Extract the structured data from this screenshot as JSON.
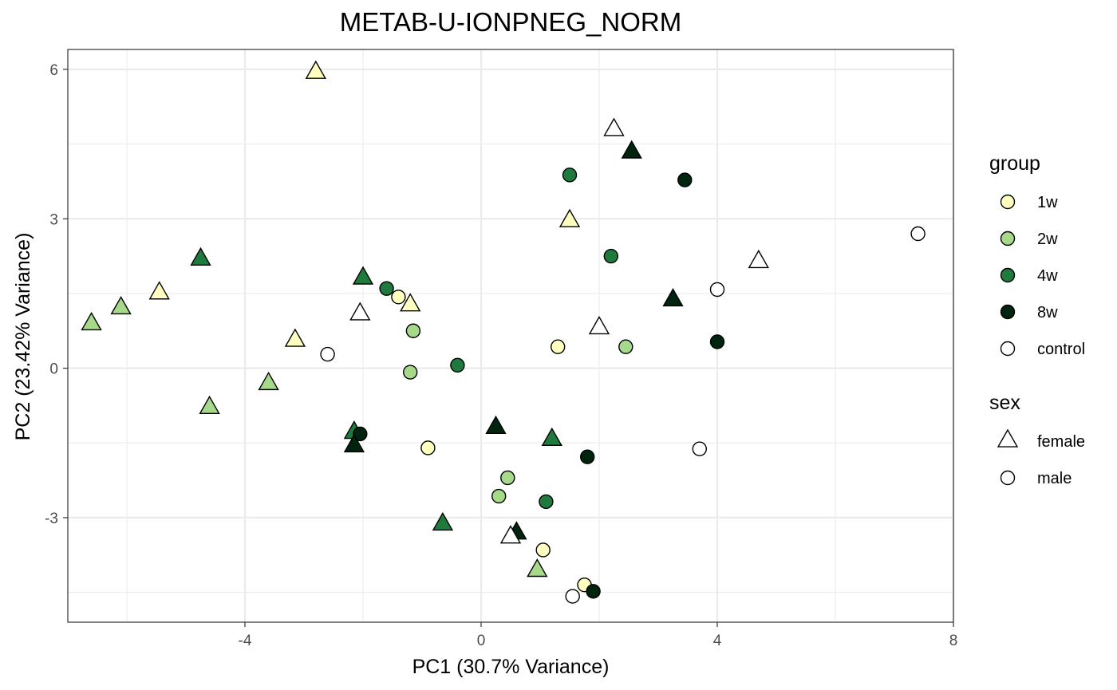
{
  "chart_data": {
    "type": "scatter",
    "title": "METAB-U-IONPNEG_NORM",
    "xlabel": "PC1 (30.7% Variance)",
    "ylabel": "PC2 (23.42% Variance)",
    "xlim": [
      -7.0,
      8.0
    ],
    "ylim": [
      -5.1,
      6.4
    ],
    "x_ticks": [
      -4,
      0,
      4,
      8
    ],
    "x_tick_labels": [
      "-4",
      "0",
      "4",
      "8"
    ],
    "y_ticks": [
      -3,
      0,
      3,
      6
    ],
    "y_tick_labels": [
      "-3",
      "0",
      "3",
      "6"
    ],
    "grid": true,
    "legend_position": "right",
    "colors": {
      "1w": "#ffffbf",
      "2w": "#a6d98a",
      "4w": "#1f7a3e",
      "8w": "#00240d",
      "control": "#ffffff"
    },
    "legends": [
      {
        "title": "group",
        "kind": "fill",
        "entries": [
          {
            "label": "1w",
            "group": "1w",
            "shape": "circle"
          },
          {
            "label": "2w",
            "group": "2w",
            "shape": "circle"
          },
          {
            "label": "4w",
            "group": "4w",
            "shape": "circle"
          },
          {
            "label": "8w",
            "group": "8w",
            "shape": "circle"
          },
          {
            "label": "control",
            "group": "control",
            "shape": "circle"
          }
        ]
      },
      {
        "title": "sex",
        "kind": "shape",
        "entries": [
          {
            "label": "female",
            "group": "control",
            "shape": "triangle"
          },
          {
            "label": "male",
            "group": "control",
            "shape": "circle"
          }
        ]
      }
    ],
    "points": [
      {
        "x": -2.8,
        "y": 5.95,
        "group": "1w",
        "sex": "female"
      },
      {
        "x": -5.45,
        "y": 1.52,
        "group": "1w",
        "sex": "female"
      },
      {
        "x": -3.15,
        "y": 0.57,
        "group": "1w",
        "sex": "female"
      },
      {
        "x": -1.2,
        "y": 1.28,
        "group": "1w",
        "sex": "female"
      },
      {
        "x": 1.5,
        "y": 2.97,
        "group": "1w",
        "sex": "female"
      },
      {
        "x": -1.4,
        "y": 1.43,
        "group": "1w",
        "sex": "male"
      },
      {
        "x": 1.3,
        "y": 0.43,
        "group": "1w",
        "sex": "male"
      },
      {
        "x": -0.9,
        "y": -1.6,
        "group": "1w",
        "sex": "male"
      },
      {
        "x": 1.05,
        "y": -3.65,
        "group": "1w",
        "sex": "male"
      },
      {
        "x": 1.75,
        "y": -4.35,
        "group": "1w",
        "sex": "male"
      },
      {
        "x": -6.6,
        "y": 0.9,
        "group": "2w",
        "sex": "female"
      },
      {
        "x": -6.1,
        "y": 1.22,
        "group": "2w",
        "sex": "female"
      },
      {
        "x": -3.6,
        "y": -0.3,
        "group": "2w",
        "sex": "female"
      },
      {
        "x": -4.6,
        "y": -0.78,
        "group": "2w",
        "sex": "female"
      },
      {
        "x": 0.95,
        "y": -4.05,
        "group": "2w",
        "sex": "female"
      },
      {
        "x": -1.15,
        "y": 0.75,
        "group": "2w",
        "sex": "male"
      },
      {
        "x": -1.2,
        "y": -0.08,
        "group": "2w",
        "sex": "male"
      },
      {
        "x": 2.45,
        "y": 0.43,
        "group": "2w",
        "sex": "male"
      },
      {
        "x": 0.45,
        "y": -2.2,
        "group": "2w",
        "sex": "male"
      },
      {
        "x": 0.3,
        "y": -2.57,
        "group": "2w",
        "sex": "male"
      },
      {
        "x": -4.75,
        "y": 2.2,
        "group": "4w",
        "sex": "female"
      },
      {
        "x": -2.0,
        "y": 1.82,
        "group": "4w",
        "sex": "female"
      },
      {
        "x": 1.2,
        "y": -1.42,
        "group": "4w",
        "sex": "female"
      },
      {
        "x": -0.65,
        "y": -3.12,
        "group": "4w",
        "sex": "female"
      },
      {
        "x": -2.15,
        "y": -1.28,
        "group": "4w",
        "sex": "female"
      },
      {
        "x": 1.5,
        "y": 3.88,
        "group": "4w",
        "sex": "male"
      },
      {
        "x": 2.2,
        "y": 2.25,
        "group": "4w",
        "sex": "male"
      },
      {
        "x": -1.6,
        "y": 1.6,
        "group": "4w",
        "sex": "male"
      },
      {
        "x": -0.4,
        "y": 0.06,
        "group": "4w",
        "sex": "male"
      },
      {
        "x": 1.1,
        "y": -2.68,
        "group": "4w",
        "sex": "male"
      },
      {
        "x": -2.05,
        "y": -1.32,
        "group": "8w",
        "sex": "male"
      },
      {
        "x": 2.55,
        "y": 4.35,
        "group": "8w",
        "sex": "female"
      },
      {
        "x": 3.25,
        "y": 1.38,
        "group": "8w",
        "sex": "female"
      },
      {
        "x": 0.25,
        "y": -1.18,
        "group": "8w",
        "sex": "female"
      },
      {
        "x": -2.15,
        "y": -1.55,
        "group": "8w",
        "sex": "female"
      },
      {
        "x": 0.6,
        "y": -3.3,
        "group": "8w",
        "sex": "female"
      },
      {
        "x": 3.45,
        "y": 3.78,
        "group": "8w",
        "sex": "male"
      },
      {
        "x": 4.0,
        "y": 0.53,
        "group": "8w",
        "sex": "male"
      },
      {
        "x": 1.8,
        "y": -1.78,
        "group": "8w",
        "sex": "male"
      },
      {
        "x": 1.9,
        "y": -4.48,
        "group": "8w",
        "sex": "male"
      },
      {
        "x": 2.25,
        "y": 4.8,
        "group": "control",
        "sex": "female"
      },
      {
        "x": 4.7,
        "y": 2.15,
        "group": "control",
        "sex": "female"
      },
      {
        "x": 2.0,
        "y": 0.82,
        "group": "control",
        "sex": "female"
      },
      {
        "x": -2.05,
        "y": 1.1,
        "group": "control",
        "sex": "female"
      },
      {
        "x": 0.5,
        "y": -3.38,
        "group": "control",
        "sex": "female"
      },
      {
        "x": 7.4,
        "y": 2.7,
        "group": "control",
        "sex": "male"
      },
      {
        "x": 4.0,
        "y": 1.58,
        "group": "control",
        "sex": "male"
      },
      {
        "x": -2.6,
        "y": 0.28,
        "group": "control",
        "sex": "male"
      },
      {
        "x": 3.7,
        "y": -1.62,
        "group": "control",
        "sex": "male"
      },
      {
        "x": 1.55,
        "y": -4.58,
        "group": "control",
        "sex": "male"
      }
    ]
  }
}
